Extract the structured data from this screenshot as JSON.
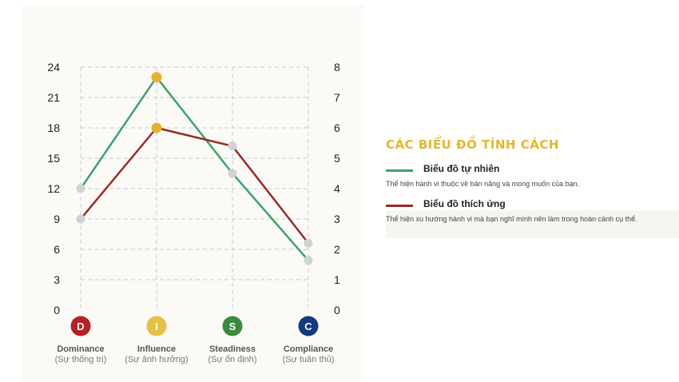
{
  "chart_data": {
    "type": "line",
    "categories": [
      "D",
      "I",
      "S",
      "C"
    ],
    "dimensions": [
      {
        "letter": "D",
        "name": "Dominance",
        "sub": "(Sự thống trị)",
        "color": "#b52025"
      },
      {
        "letter": "I",
        "name": "Influence",
        "sub": "(Sự ảnh hưởng)",
        "color": "#e5c042"
      },
      {
        "letter": "S",
        "name": "Steadiness",
        "sub": "(Sự ổn định)",
        "color": "#3c8a3b"
      },
      {
        "letter": "C",
        "name": "Compliance",
        "sub": "(Sự tuân thủ)",
        "color": "#123a80"
      }
    ],
    "left_axis": {
      "ticks": [
        "0",
        "3",
        "6",
        "9",
        "12",
        "15",
        "18",
        "21",
        "24"
      ],
      "ylim": [
        0,
        24
      ]
    },
    "right_axis": {
      "ticks": [
        "0",
        "1",
        "2",
        "3",
        "4",
        "5",
        "6",
        "7",
        "8"
      ],
      "ylim": [
        0,
        8
      ]
    },
    "grid": true,
    "series": [
      {
        "name": "Biểu đồ tự nhiên",
        "color": "#3aa46b",
        "values": [
          12,
          23,
          13.5,
          4.9
        ]
      },
      {
        "name": "Biểu đồ thích ứng",
        "color": "#9a2a28",
        "values": [
          9,
          18,
          16.2,
          6.6
        ]
      }
    ],
    "highlight_color": "#e5b230",
    "point_color": "#d2d2d2"
  },
  "legend": {
    "title": "CÁC BIỂU ĐỒ TÍNH CÁCH",
    "items": [
      {
        "label": "Biểu đồ tự nhiên",
        "desc": "Thể hiện hành vi thuộc về bản năng và mong muốn của bạn.",
        "color": "#3aa46b"
      },
      {
        "label": "Biểu đồ thích ứng",
        "desc": "Thể hiện xu hướng hành vi mà bạn nghĩ mình nên làm trong hoàn cảnh cụ thể.",
        "color": "#9a2a28"
      }
    ]
  }
}
